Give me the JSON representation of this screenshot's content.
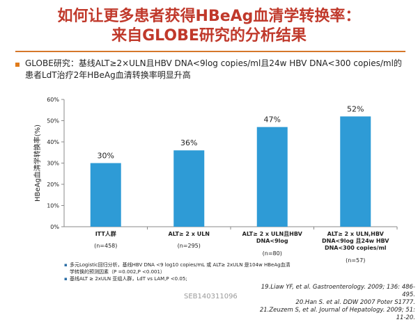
{
  "title": {
    "line1": "如何让更多患者获得HBeAg血清学转换率：",
    "line2": "来自GLOBE研究的分析结果"
  },
  "intro": "GLOBE研究：基线ALT≥2×ULN且HBV DNA<9log copies/ml且24w HBV DNA<300 copies/ml的患者LdT治疗2年HBeAg血清转换率明显升高",
  "chart_data": {
    "type": "bar",
    "ylabel": "HBeAg血清学转换率(%)",
    "ylim": [
      0,
      60
    ],
    "yticks": [
      "0%",
      "10%",
      "20%",
      "30%",
      "40%",
      "50%",
      "60%"
    ],
    "tick_values": [
      0,
      10,
      20,
      30,
      40,
      50,
      60
    ],
    "bar_color": "#2e9bd6",
    "grid": false,
    "categories": [
      {
        "label_lines": [
          "ITT人群"
        ],
        "n": "(n=458)"
      },
      {
        "label_lines": [
          "ALT≥ 2 x ULN"
        ],
        "n": "(n=295)"
      },
      {
        "label_lines": [
          "ALT≥ 2 x ULN且HBV",
          "DNA<9log"
        ],
        "n": "(n=80)"
      },
      {
        "label_lines": [
          "ALT≥ 2 x ULN,HBV",
          "DNA<9log 且24w HBV",
          "DNA<300 copies/ml"
        ],
        "n": "(n=57)"
      }
    ],
    "values": [
      30,
      36,
      47,
      52
    ],
    "value_labels": [
      "30%",
      "36%",
      "47%",
      "52%"
    ]
  },
  "footnotes": [
    "多元Logistic回归分析，基线HBV DNA <9 log10 copies/mL 或 ALT≥ 2xULN 是104w HBeAg血清学转换的预测因素（P =0.002,P <0.001）",
    "基线ALT ≥ 2xULN 亚组人群，LdT vs LAM,P <0.05;"
  ],
  "references": [
    "19.Liaw YF, et al. Gastroenterology. 2009; 136: 486-495.",
    "20.Han S. et al. DDW 2007 Poter S1777.",
    "21.Zeuzem S, et al. Journal of Hepatology. 2009; 51: 11-20."
  ],
  "watermark": "SEB140311096"
}
